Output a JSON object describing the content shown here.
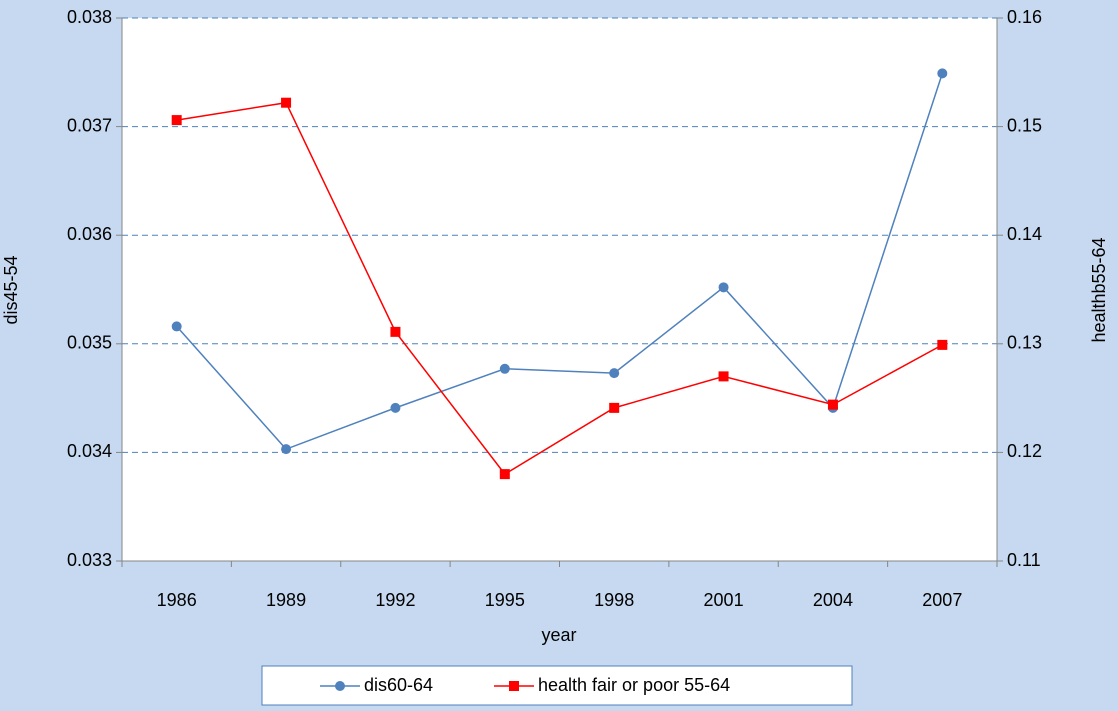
{
  "chart_data": {
    "type": "line",
    "x_label": "year",
    "y_label": "dis45-54",
    "y2_label": "healthb55-64",
    "categories": [
      "1986",
      "1989",
      "1992",
      "1995",
      "1998",
      "2001",
      "2004",
      "2007"
    ],
    "series": [
      {
        "name": "dis60-64",
        "color": "#4f81bd",
        "marker": "circle",
        "values": [
          0.03516,
          0.03403,
          0.03441,
          0.03477,
          0.03473,
          0.03552,
          0.03441,
          0.03749
        ]
      },
      {
        "name": "health fair or poor 55-64",
        "color": "#ff0000",
        "marker": "square",
        "axis": "y2",
        "values": [
          0.1506,
          0.1522,
          0.1311,
          0.118,
          0.1241,
          0.127,
          0.1244,
          0.1299
        ]
      }
    ],
    "ylim": [
      0.033,
      0.038
    ],
    "yticks": [
      0.033,
      0.034,
      0.035,
      0.036,
      0.037,
      0.038
    ],
    "y2lim": [
      0.11,
      0.16
    ],
    "y2ticks": [
      0.11,
      0.12,
      0.13,
      0.14,
      0.15,
      0.16
    ],
    "grid": true,
    "legend": "bottom"
  }
}
